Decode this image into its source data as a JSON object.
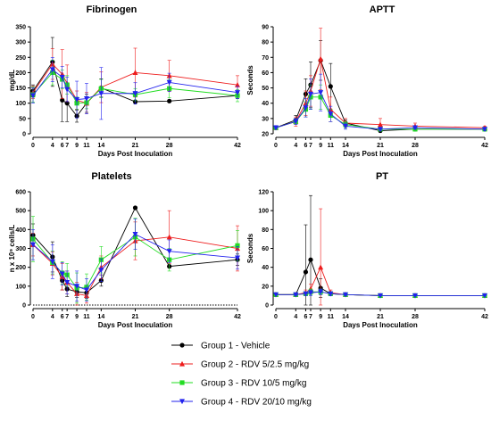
{
  "legend": [
    {
      "label": "Group 1 - Vehicle",
      "color": "#000000",
      "marker": "circle"
    },
    {
      "label": "Group 2 - RDV 5/2.5 mg/kg",
      "color": "#ee1c1c",
      "marker": "triangle-up"
    },
    {
      "label": "Group 3 - RDV 10/5 mg/kg",
      "color": "#22dd22",
      "marker": "square"
    },
    {
      "label": "Group 4 - RDV 20/10 mg/kg",
      "color": "#2222ee",
      "marker": "triangle-down"
    }
  ],
  "chart_data": [
    {
      "type": "line",
      "title": "Fibrinogen",
      "xlabel": "Days Post Inoculation",
      "ylabel": "mg/dL",
      "xlim": [
        0,
        42
      ],
      "ylim": [
        0,
        350
      ],
      "xticks": [
        0,
        4,
        6,
        7,
        9,
        11,
        14,
        21,
        28,
        42
      ],
      "yticks": [
        0,
        50,
        100,
        150,
        200,
        250,
        300,
        350
      ],
      "x": [
        0,
        4,
        6,
        7,
        9,
        11,
        14,
        21,
        28,
        42
      ],
      "series": [
        {
          "name": "Group 1 - Vehicle",
          "color": "#000000",
          "marker": "circle",
          "values": [
            140,
            235,
            110,
            100,
            58,
            100,
            150,
            105,
            107,
            125
          ],
          "errors": [
            20,
            80,
            70,
            60,
            20,
            30,
            30,
            0,
            0,
            10
          ]
        },
        {
          "name": "Group 2 - RDV 5/2.5 mg/kg",
          "color": "#ee1c1c",
          "marker": "triangle-up",
          "values": [
            135,
            228,
            195,
            165,
            110,
            100,
            152,
            200,
            190,
            160
          ],
          "errors": [
            20,
            50,
            80,
            60,
            30,
            35,
            50,
            80,
            50,
            30
          ]
        },
        {
          "name": "Group 3 - RDV 10/5 mg/kg",
          "color": "#22dd22",
          "marker": "square",
          "values": [
            128,
            200,
            178,
            160,
            100,
            102,
            148,
            128,
            148,
            125
          ],
          "errors": [
            25,
            40,
            30,
            30,
            20,
            20,
            30,
            20,
            30,
            20
          ]
        },
        {
          "name": "Group 4 - RDV 20/10 mg/kg",
          "color": "#2222ee",
          "marker": "triangle-down",
          "values": [
            125,
            210,
            185,
            145,
            112,
            115,
            132,
            132,
            168,
            135
          ],
          "errors": [
            25,
            40,
            35,
            40,
            60,
            50,
            85,
            35,
            30,
            20
          ]
        }
      ]
    },
    {
      "type": "line",
      "title": "APTT",
      "xlabel": "Days Post Inoculation",
      "ylabel": "Seconds",
      "xlim": [
        0,
        42
      ],
      "ylim": [
        20,
        90
      ],
      "xticks": [
        0,
        4,
        6,
        7,
        9,
        11,
        14,
        21,
        28,
        42
      ],
      "yticks": [
        20,
        30,
        40,
        50,
        60,
        70,
        80,
        90
      ],
      "x": [
        0,
        4,
        6,
        7,
        9,
        11,
        14,
        21,
        28,
        42
      ],
      "series": [
        {
          "name": "Group 1 - Vehicle",
          "color": "#000000",
          "marker": "circle",
          "values": [
            24,
            29,
            46,
            52,
            68,
            51,
            27,
            22,
            23,
            23
          ],
          "errors": [
            1,
            3,
            10,
            15,
            13,
            15,
            2,
            1,
            1,
            1
          ]
        },
        {
          "name": "Group 2 - RDV 5/2.5 mg/kg",
          "color": "#ee1c1c",
          "marker": "triangle-up",
          "values": [
            24,
            28,
            40,
            48,
            69,
            36,
            27,
            26,
            25,
            24
          ],
          "errors": [
            1,
            3,
            8,
            10,
            20,
            8,
            3,
            4,
            2,
            1
          ]
        },
        {
          "name": "Group 3 - RDV 10/5 mg/kg",
          "color": "#22dd22",
          "marker": "square",
          "values": [
            24,
            28,
            36,
            44,
            44,
            32,
            26,
            23,
            23,
            23
          ],
          "errors": [
            1,
            2,
            5,
            8,
            8,
            4,
            2,
            1,
            1,
            1
          ]
        },
        {
          "name": "Group 4 - RDV 20/10 mg/kg",
          "color": "#2222ee",
          "marker": "triangle-down",
          "values": [
            24,
            28,
            37,
            46,
            47,
            33,
            25,
            23,
            24,
            23
          ],
          "errors": [
            1,
            2,
            6,
            10,
            12,
            5,
            2,
            1,
            1,
            1
          ]
        }
      ]
    },
    {
      "type": "line",
      "title": "Platelets",
      "xlabel": "Days Post Inoculation",
      "ylabel": "n x 10⁹ cells/L",
      "xlim": [
        0,
        42
      ],
      "ylim": [
        0,
        600
      ],
      "xticks": [
        0,
        4,
        6,
        7,
        9,
        11,
        14,
        21,
        28,
        42
      ],
      "yticks": [
        0,
        100,
        200,
        300,
        400,
        500,
        600
      ],
      "x": [
        0,
        4,
        6,
        7,
        9,
        11,
        14,
        21,
        28,
        42
      ],
      "series": [
        {
          "name": "Group 1 - Vehicle",
          "color": "#000000",
          "marker": "circle",
          "values": [
            370,
            255,
            130,
            85,
            70,
            65,
            130,
            515,
            205,
            240
          ],
          "errors": [
            60,
            80,
            50,
            40,
            30,
            30,
            30,
            0,
            0,
            30
          ]
        },
        {
          "name": "Group 2 - RDV 5/2.5 mg/kg",
          "color": "#ee1c1c",
          "marker": "triangle-up",
          "values": [
            320,
            220,
            150,
            120,
            60,
            50,
            200,
            340,
            360,
            300
          ],
          "errors": [
            60,
            60,
            70,
            60,
            60,
            40,
            60,
            100,
            140,
            120
          ]
        },
        {
          "name": "Group 3 - RDV 10/5 mg/kg",
          "color": "#22dd22",
          "marker": "square",
          "values": [
            350,
            225,
            170,
            160,
            90,
            95,
            240,
            360,
            240,
            315
          ],
          "errors": [
            120,
            60,
            60,
            60,
            80,
            70,
            70,
            100,
            60,
            80
          ]
        },
        {
          "name": "Group 4 - RDV 20/10 mg/kg",
          "color": "#2222ee",
          "marker": "triangle-down",
          "values": [
            320,
            230,
            165,
            120,
            100,
            80,
            185,
            375,
            285,
            250
          ],
          "errors": [
            80,
            90,
            60,
            60,
            80,
            60,
            60,
            80,
            60,
            60
          ]
        }
      ]
    },
    {
      "type": "line",
      "title": "PT",
      "xlabel": "Days Post Inoculation",
      "ylabel": "Seconds",
      "xlim": [
        0,
        42
      ],
      "ylim": [
        0,
        120
      ],
      "xticks": [
        0,
        4,
        6,
        7,
        9,
        11,
        14,
        21,
        28,
        42
      ],
      "yticks": [
        0,
        20,
        40,
        60,
        80,
        100,
        120
      ],
      "x": [
        0,
        4,
        6,
        7,
        9,
        11,
        14,
        21,
        28,
        42
      ],
      "series": [
        {
          "name": "Group 1 - Vehicle",
          "color": "#000000",
          "marker": "circle",
          "values": [
            11,
            11,
            35,
            48,
            18,
            12,
            11,
            10,
            10,
            10
          ],
          "errors": [
            0,
            1,
            50,
            68,
            10,
            2,
            1,
            0,
            0,
            0
          ]
        },
        {
          "name": "Group 2 - RDV 5/2.5 mg/kg",
          "color": "#ee1c1c",
          "marker": "triangle-up",
          "values": [
            11,
            11,
            13,
            17,
            40,
            13,
            11,
            10,
            10,
            10
          ],
          "errors": [
            0,
            1,
            3,
            5,
            62,
            3,
            1,
            0,
            0,
            0
          ]
        },
        {
          "name": "Group 3 - RDV 10/5 mg/kg",
          "color": "#22dd22",
          "marker": "square",
          "values": [
            11,
            11,
            12,
            14,
            14,
            12,
            11,
            10,
            10,
            10
          ],
          "errors": [
            0,
            1,
            2,
            3,
            3,
            2,
            1,
            0,
            0,
            0
          ]
        },
        {
          "name": "Group 4 - RDV 20/10 mg/kg",
          "color": "#2222ee",
          "marker": "triangle-down",
          "values": [
            11,
            11,
            12,
            13,
            14,
            12,
            11,
            10,
            10,
            10
          ],
          "errors": [
            0,
            1,
            2,
            3,
            3,
            2,
            1,
            0,
            0,
            0
          ]
        }
      ]
    }
  ]
}
